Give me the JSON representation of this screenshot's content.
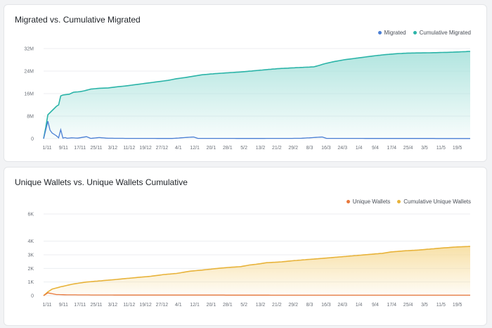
{
  "charts": [
    {
      "title": "Migrated vs. Cumulative Migrated",
      "colors": {
        "primary": "#4a7fd4",
        "cumulative": "#2bb4a8",
        "fill_top": "#a9e2dc"
      },
      "chart_data": {
        "type": "line",
        "title": "Migrated vs. Cumulative Migrated",
        "legend_position": "top-right",
        "categories": [
          "1/11",
          "9/11",
          "17/11",
          "25/11",
          "3/12",
          "11/12",
          "19/12",
          "27/12",
          "4/1",
          "12/1",
          "20/1",
          "28/1",
          "5/2",
          "13/2",
          "21/2",
          "29/2",
          "8/3",
          "16/3",
          "24/3",
          "1/4",
          "9/4",
          "17/4",
          "25/4",
          "3/5",
          "11/5",
          "19/5"
        ],
        "y_ticks": [
          "0",
          "8M",
          "16M",
          "24M",
          "32M"
        ],
        "ylim": [
          0,
          32000000
        ],
        "n_points": 200,
        "series": [
          {
            "name": "Migrated",
            "points": [
              [
                0,
                0
              ],
              [
                2,
                6200000
              ],
              [
                3,
                3000000
              ],
              [
                4,
                2000000
              ],
              [
                5,
                1500000
              ],
              [
                6,
                1000000
              ],
              [
                7,
                300000
              ],
              [
                8,
                3200000
              ],
              [
                9,
                200000
              ],
              [
                10,
                400000
              ],
              [
                11,
                150000
              ],
              [
                13,
                300000
              ],
              [
                16,
                200000
              ],
              [
                20,
                700000
              ],
              [
                22,
                100000
              ],
              [
                26,
                400000
              ],
              [
                30,
                150000
              ],
              [
                40,
                100000
              ],
              [
                60,
                80000
              ],
              [
                70,
                600000
              ],
              [
                72,
                100000
              ],
              [
                100,
                80000
              ],
              [
                120,
                120000
              ],
              [
                130,
                600000
              ],
              [
                132,
                100000
              ],
              [
                160,
                80000
              ],
              [
                199,
                50000
              ]
            ]
          },
          {
            "name": "Cumulative Migrated",
            "points": [
              [
                0,
                0
              ],
              [
                1,
                4000000
              ],
              [
                2,
                8500000
              ],
              [
                4,
                10000000
              ],
              [
                6,
                11500000
              ],
              [
                7,
                12000000
              ],
              [
                8,
                15200000
              ],
              [
                9,
                15500000
              ],
              [
                12,
                15800000
              ],
              [
                14,
                16500000
              ],
              [
                17,
                16700000
              ],
              [
                19,
                17000000
              ],
              [
                22,
                17600000
              ],
              [
                26,
                17900000
              ],
              [
                30,
                18000000
              ],
              [
                34,
                18400000
              ],
              [
                38,
                18700000
              ],
              [
                42,
                19100000
              ],
              [
                46,
                19500000
              ],
              [
                50,
                19900000
              ],
              [
                54,
                20300000
              ],
              [
                58,
                20700000
              ],
              [
                62,
                21300000
              ],
              [
                66,
                21700000
              ],
              [
                70,
                22200000
              ],
              [
                74,
                22700000
              ],
              [
                80,
                23100000
              ],
              [
                86,
                23400000
              ],
              [
                92,
                23700000
              ],
              [
                98,
                24100000
              ],
              [
                105,
                24600000
              ],
              [
                110,
                24900000
              ],
              [
                115,
                25100000
              ],
              [
                120,
                25300000
              ],
              [
                126,
                25500000
              ],
              [
                128,
                25900000
              ],
              [
                131,
                26600000
              ],
              [
                135,
                27300000
              ],
              [
                140,
                28000000
              ],
              [
                145,
                28500000
              ],
              [
                150,
                29000000
              ],
              [
                155,
                29500000
              ],
              [
                160,
                29900000
              ],
              [
                165,
                30200000
              ],
              [
                170,
                30400000
              ],
              [
                180,
                30500000
              ],
              [
                190,
                30700000
              ],
              [
                199,
                31000000
              ]
            ]
          }
        ]
      }
    },
    {
      "title": "Unique Wallets vs. Unique Wallets Cumulative",
      "colors": {
        "primary": "#e8783c",
        "cumulative": "#e8b33a",
        "fill_top": "#f7dd9e"
      },
      "chart_data": {
        "type": "line",
        "title": "Unique Wallets vs. Unique Wallets Cumulative",
        "legend_position": "top-right",
        "categories": [
          "1/11",
          "9/11",
          "17/11",
          "25/11",
          "3/12",
          "11/12",
          "19/12",
          "27/12",
          "4/1",
          "12/1",
          "20/1",
          "28/1",
          "5/2",
          "13/2",
          "21/2",
          "29/2",
          "8/3",
          "16/3",
          "24/3",
          "1/4",
          "9/4",
          "17/4",
          "25/4",
          "3/5",
          "11/5",
          "19/5"
        ],
        "y_ticks": [
          "0",
          "1K",
          "2K",
          "3K",
          "4K",
          "6K"
        ],
        "y_tick_values": [
          0,
          1000,
          2000,
          3000,
          4000,
          6000
        ],
        "ylim": [
          0,
          6000
        ],
        "n_points": 200,
        "series": [
          {
            "name": "Unique Wallets",
            "points": [
              [
                0,
                0
              ],
              [
                2,
                200
              ],
              [
                4,
                140
              ],
              [
                6,
                80
              ],
              [
                10,
                60
              ],
              [
                20,
                50
              ],
              [
                40,
                40
              ],
              [
                80,
                40
              ],
              [
                120,
                30
              ],
              [
                160,
                30
              ],
              [
                199,
                30
              ]
            ]
          },
          {
            "name": "Cumulative Unique Wallets",
            "points": [
              [
                0,
                0
              ],
              [
                2,
                280
              ],
              [
                4,
                480
              ],
              [
                8,
                650
              ],
              [
                14,
                860
              ],
              [
                20,
                1000
              ],
              [
                26,
                1080
              ],
              [
                32,
                1160
              ],
              [
                38,
                1250
              ],
              [
                44,
                1340
              ],
              [
                50,
                1420
              ],
              [
                56,
                1550
              ],
              [
                62,
                1630
              ],
              [
                68,
                1790
              ],
              [
                74,
                1880
              ],
              [
                80,
                1980
              ],
              [
                86,
                2070
              ],
              [
                92,
                2130
              ],
              [
                96,
                2250
              ],
              [
                100,
                2320
              ],
              [
                104,
                2420
              ],
              [
                110,
                2470
              ],
              [
                116,
                2560
              ],
              [
                122,
                2640
              ],
              [
                128,
                2710
              ],
              [
                134,
                2790
              ],
              [
                140,
                2870
              ],
              [
                146,
                2950
              ],
              [
                152,
                3030
              ],
              [
                158,
                3110
              ],
              [
                162,
                3210
              ],
              [
                168,
                3290
              ],
              [
                174,
                3340
              ],
              [
                180,
                3420
              ],
              [
                186,
                3500
              ],
              [
                192,
                3570
              ],
              [
                199,
                3620
              ]
            ]
          }
        ]
      }
    }
  ]
}
